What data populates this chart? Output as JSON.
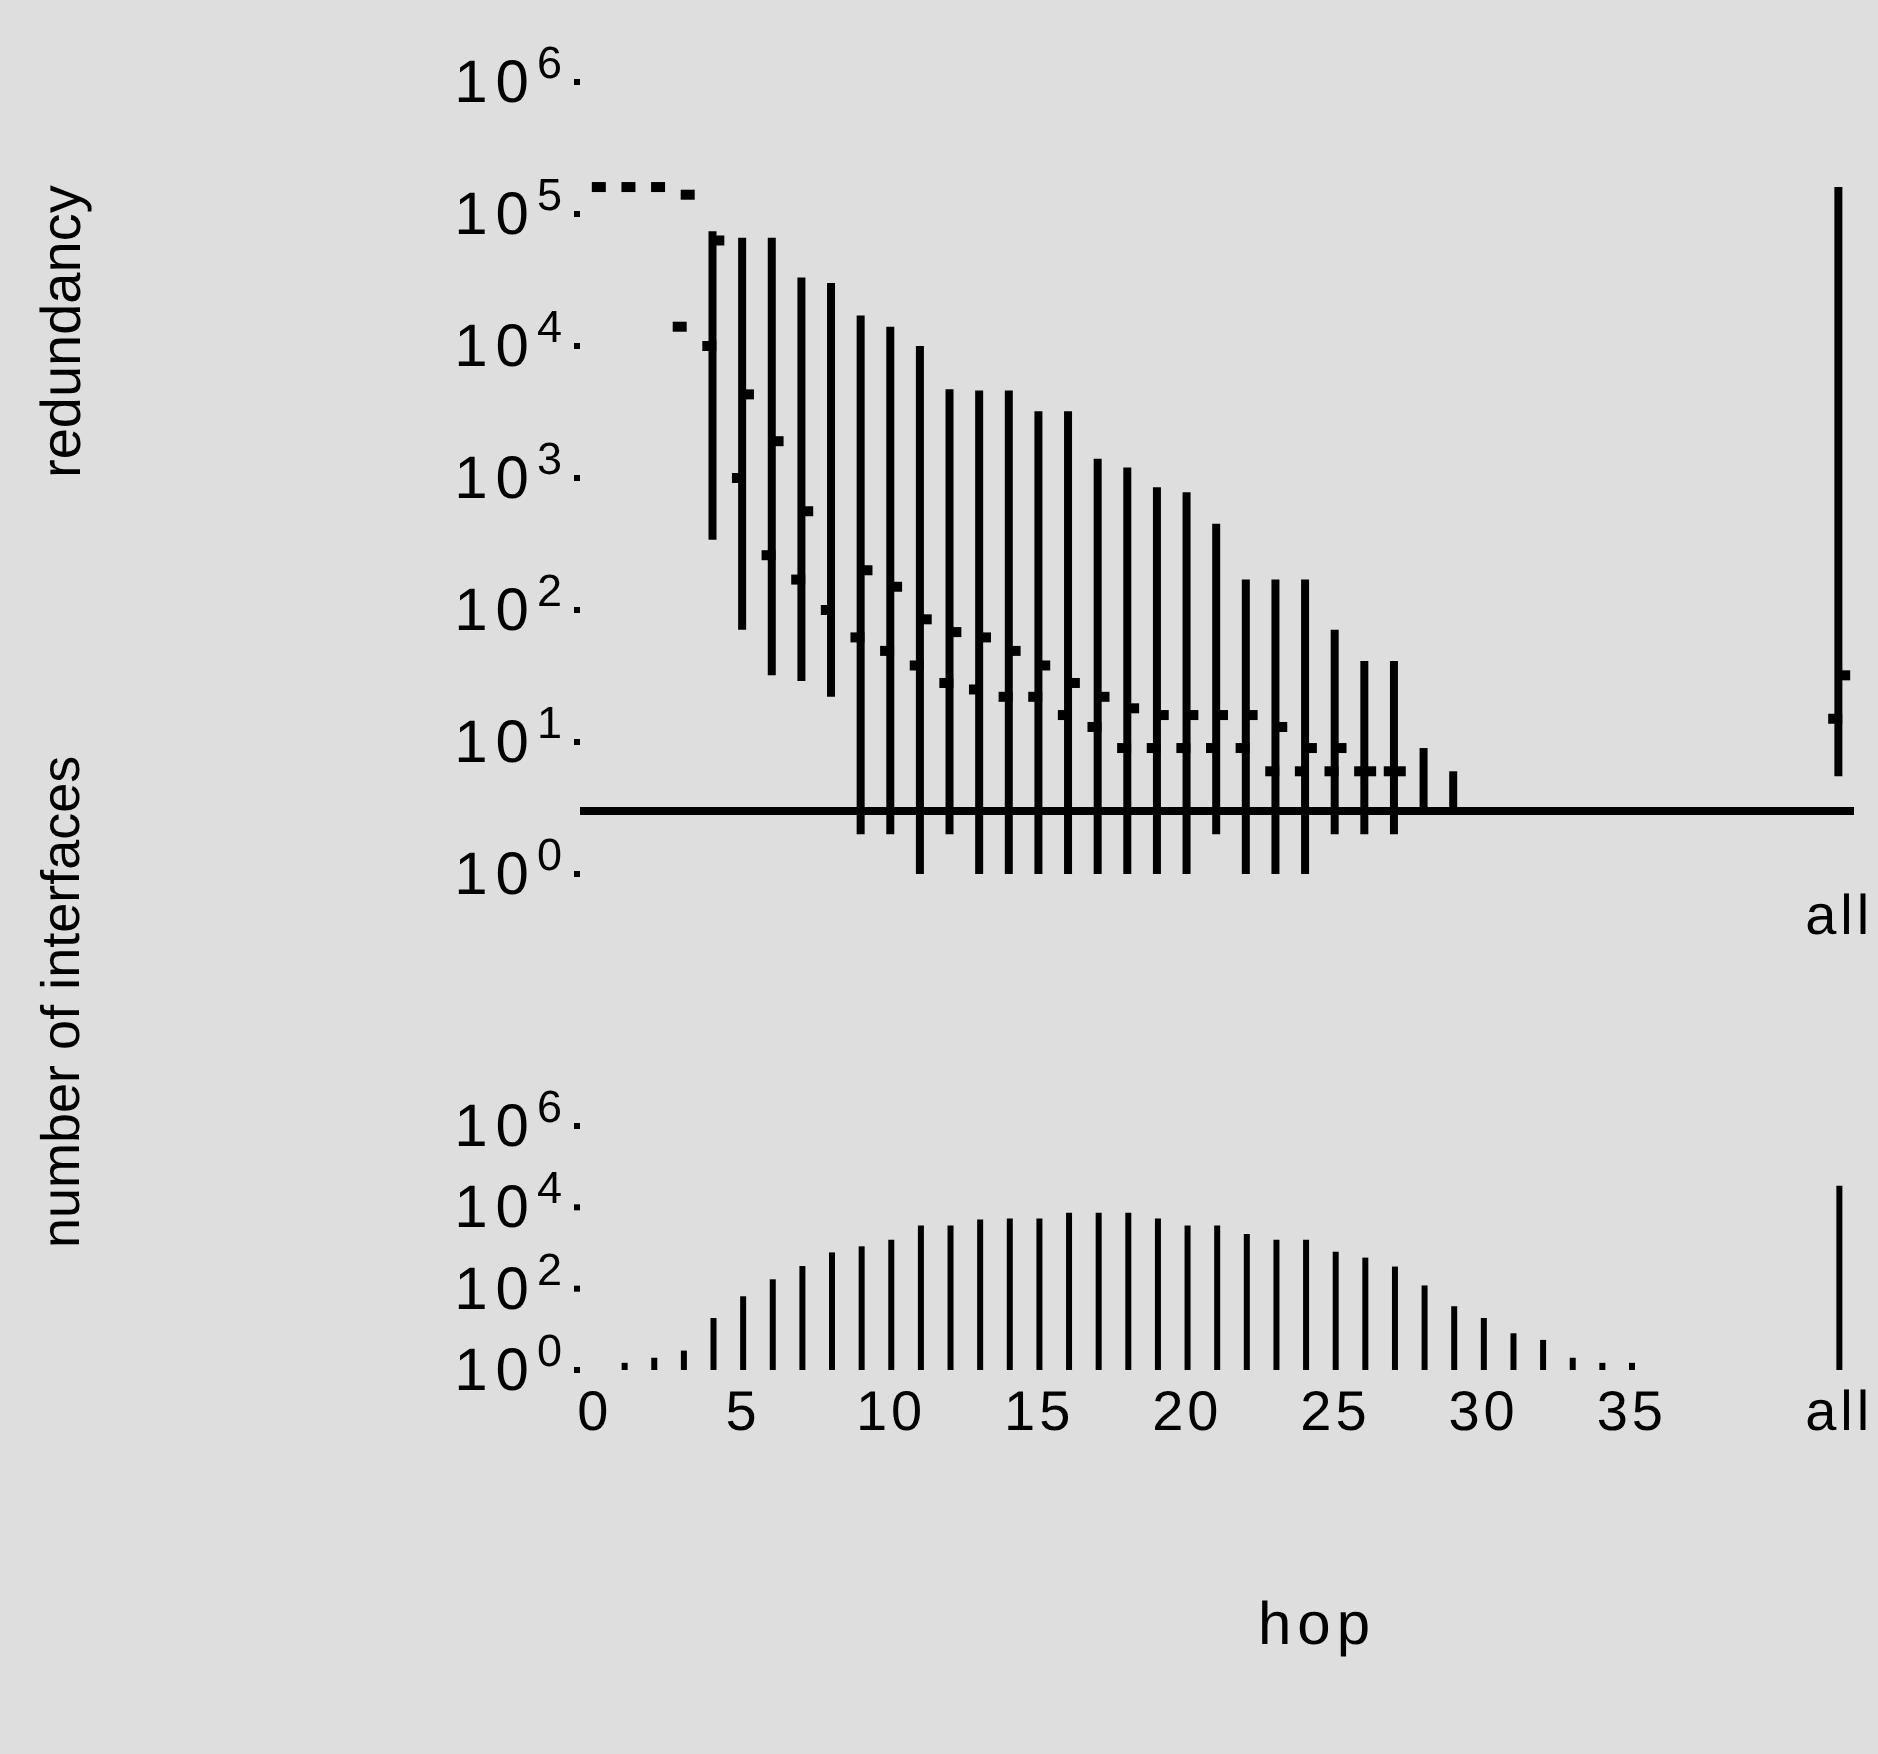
{
  "chart_data": [
    {
      "type": "bar",
      "ylabel": "redundancy",
      "log": true,
      "legend": false,
      "grid": false,
      "categories": [
        null,
        null,
        null,
        null,
        null,
        null,
        null,
        null,
        null,
        null,
        null,
        null,
        null,
        null,
        null,
        null,
        null,
        null,
        null,
        null,
        null,
        null,
        null,
        null,
        null,
        null,
        null,
        null,
        null,
        null,
        null,
        null,
        null,
        null,
        null,
        null,
        null,
        null,
        null,
        null,
        null,
        null,
        "all"
      ],
      "ylim": [
        1,
        1000000
      ],
      "yticks": [
        {
          "value": 1,
          "label": "10$^{0}$"
        },
        {
          "value": 10,
          "label": "10$^{1}$"
        },
        {
          "value": 100,
          "label": "10$^{2}$"
        },
        {
          "value": 1000,
          "label": "10$^{3}$"
        },
        {
          "value": 10000,
          "label": "10$^{4}$"
        },
        {
          "value": 100000,
          "label": "10$^{5}$"
        },
        {
          "value": 1000000,
          "label": "10$^{6}$"
        }
      ],
      "series": [
        {
          "type": "bar",
          "color": "#000000",
          "base": [
            null,
            null,
            null,
            null,
            340,
            71,
            32,
            29,
            22,
            2,
            2,
            1,
            2,
            1,
            1,
            1,
            1,
            1,
            1,
            1,
            1,
            2,
            1,
            1,
            1,
            2,
            2,
            2,
            3,
            3,
            null,
            null,
            null,
            null,
            null,
            null,
            null,
            null,
            null,
            null,
            null,
            null,
            5.5
          ],
          "values": [
            null,
            null,
            null,
            null,
            73660,
            65929,
            65968,
            32971,
            29978,
            16998,
            13998,
            9999,
            4698,
            4599,
            4599,
            3199,
            3199,
            1399,
            1199,
            849,
            779,
            448,
            169,
            169,
            169,
            69,
            39,
            39,
            6,
            3,
            null,
            null,
            null,
            null,
            null,
            null,
            null,
            null,
            null,
            null,
            null,
            null,
            159994.5
          ]
        },
        {
          "type": "scatter",
          "color": "#000000",
          "marker": "square",
          "values": [
            null,
            null,
            null,
            14000,
            10000,
            1000,
            260,
            170,
            100,
            62,
            49,
            38,
            28,
            25,
            22,
            22,
            16,
            13,
            9,
            9,
            9,
            9,
            9,
            6,
            6,
            6,
            6,
            6,
            null,
            null,
            null,
            null,
            null,
            null,
            null,
            null,
            null,
            null,
            null,
            null,
            null,
            null,
            15
          ]
        },
        {
          "type": "scatter",
          "color": "#000000",
          "marker": "square",
          "values": [
            160000,
            160000,
            160000,
            140000,
            63000,
            4300,
            1900,
            560,
            null,
            200,
            150,
            85,
            68,
            62,
            49,
            38,
            28,
            22,
            18,
            16,
            16,
            16,
            16,
            13,
            9,
            9,
            6,
            6,
            null,
            null,
            null,
            null,
            null,
            null,
            null,
            null,
            null,
            null,
            null,
            null,
            null,
            null,
            32
          ]
        }
      ],
      "ref_lines": [
        {
          "axis": "y",
          "value": 3,
          "color": "#000000"
        }
      ]
    },
    {
      "type": "bar",
      "ylabel": "number of interfaces",
      "xlabel": "hop",
      "log": true,
      "legend": false,
      "grid": false,
      "color": "#000000",
      "categories": [
        "0",
        null,
        null,
        null,
        null,
        "5",
        null,
        null,
        null,
        null,
        "10",
        null,
        null,
        null,
        null,
        "15",
        null,
        null,
        null,
        null,
        "20",
        null,
        null,
        null,
        null,
        "25",
        null,
        null,
        null,
        null,
        "30",
        null,
        null,
        null,
        null,
        "35",
        null,
        null,
        null,
        null,
        null,
        null,
        "all"
      ],
      "ylim": [
        1,
        1000000
      ],
      "yticks": [
        {
          "value": 1,
          "label": "10$^{0}$"
        },
        {
          "value": 100,
          "label": "10$^{2}$"
        },
        {
          "value": 10000,
          "label": "10$^{4}$"
        },
        {
          "value": 1000000,
          "label": "10$^{6}$"
        }
      ],
      "values": [
        null,
        1.5,
        2,
        3,
        19,
        65,
        170,
        360,
        780,
        1100,
        1600,
        3600,
        3600,
        5000,
        5300,
        5300,
        7400,
        7400,
        7400,
        5300,
        3600,
        3600,
        2200,
        1600,
        1600,
        810,
        580,
        350,
        120,
        37,
        19,
        8,
        5.5,
        2,
        1.5,
        1.5,
        null,
        null,
        null,
        null,
        null,
        null,
        34000
      ]
    }
  ]
}
